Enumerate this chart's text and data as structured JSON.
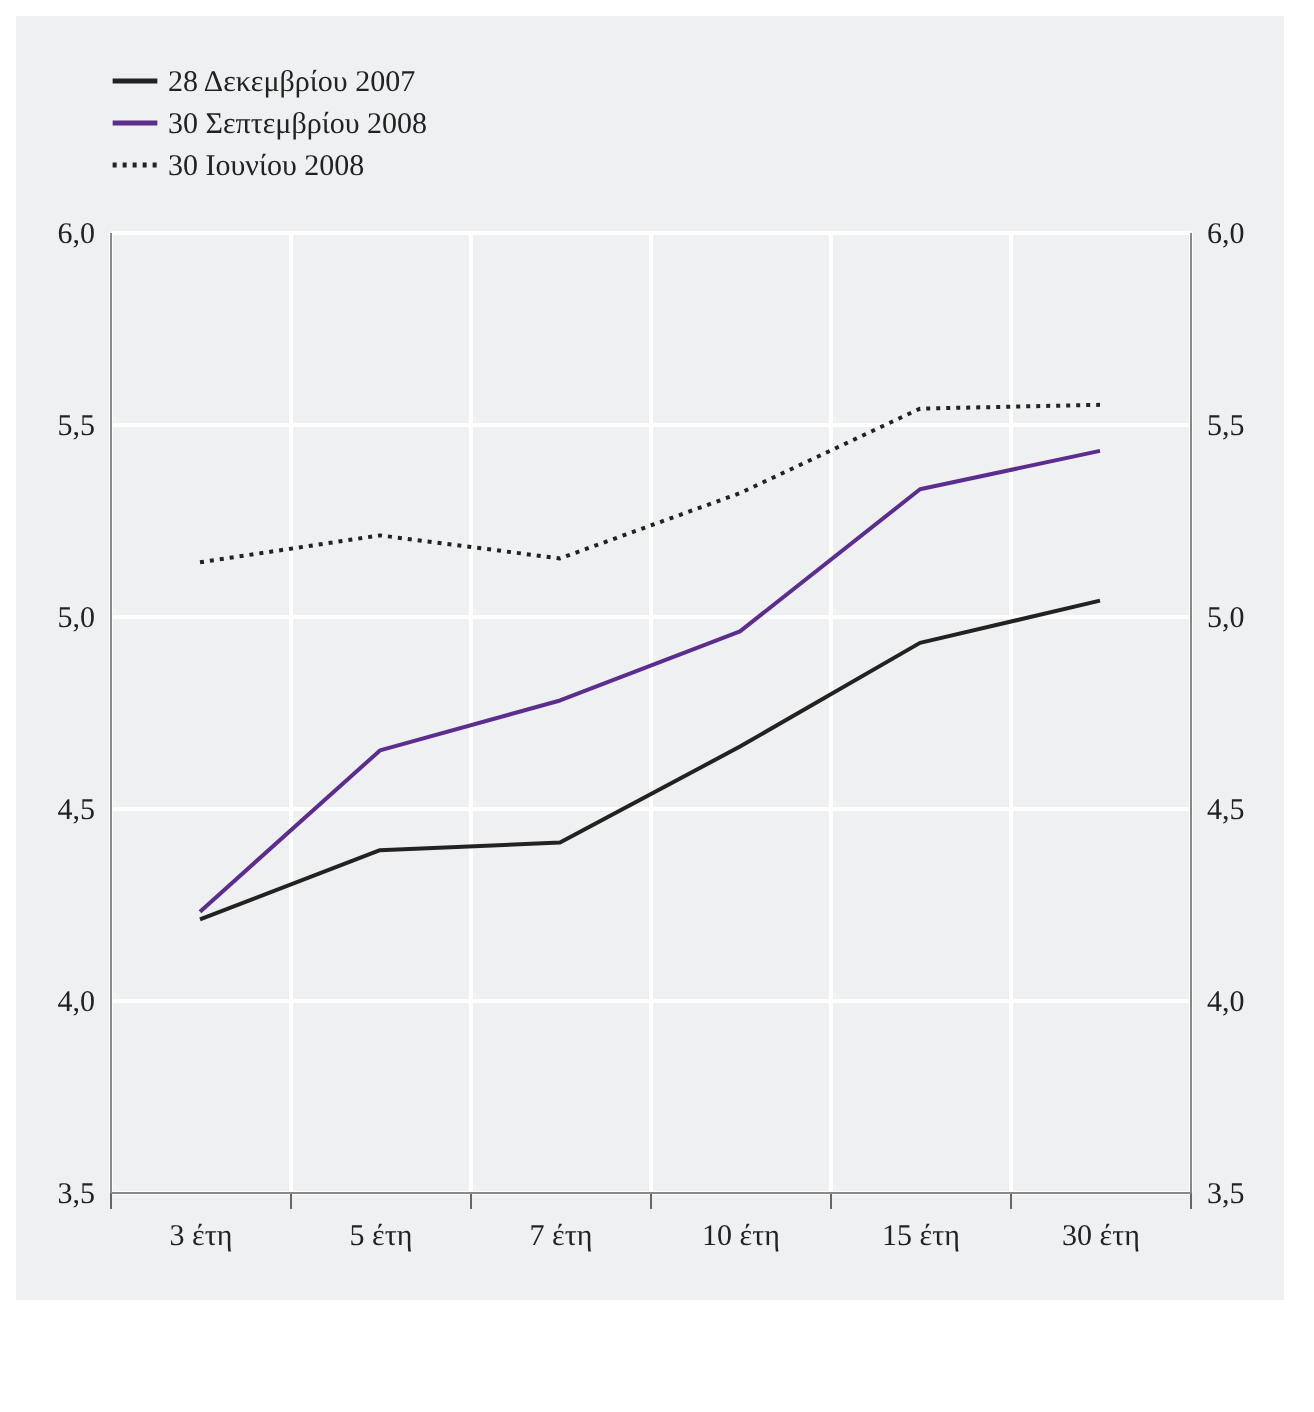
{
  "chart_data": {
    "type": "line",
    "categories": [
      "3 έτη",
      "5 έτη",
      "7 έτη",
      "10 έτη",
      "15 έτη",
      "30 έτη"
    ],
    "series": [
      {
        "name": "28 Δεκεμβρίου 2007",
        "color": "#222222",
        "line_style": "solid",
        "values": [
          4.21,
          4.39,
          4.41,
          4.66,
          4.93,
          5.04
        ]
      },
      {
        "name": "30 Σεπτεμβρίου 2008",
        "color": "#5b2d8e",
        "line_style": "solid",
        "values": [
          4.23,
          4.65,
          4.78,
          4.96,
          5.33,
          5.43
        ]
      },
      {
        "name": "30 Ιουνίου 2008",
        "color": "#222222",
        "line_style": "dotted",
        "values": [
          5.14,
          5.21,
          5.15,
          5.32,
          5.54,
          5.55
        ]
      }
    ],
    "ylim": [
      3.5,
      6.0
    ],
    "yticks": [
      {
        "value": 3.5,
        "label": "3,5"
      },
      {
        "value": 4.0,
        "label": "4,0"
      },
      {
        "value": 4.5,
        "label": "4,5"
      },
      {
        "value": 5.0,
        "label": "5,0"
      },
      {
        "value": 5.5,
        "label": "5,5"
      },
      {
        "value": 6.0,
        "label": "6,0"
      }
    ],
    "y2lim": [
      3.5,
      6.0
    ],
    "y2ticks": [
      {
        "value": 3.5,
        "label": "3,5"
      },
      {
        "value": 4.0,
        "label": "4,0"
      },
      {
        "value": 4.5,
        "label": "4,5"
      },
      {
        "value": 5.0,
        "label": "5,0"
      },
      {
        "value": 5.5,
        "label": "5,5"
      },
      {
        "value": 6.0,
        "label": "6,0"
      }
    ],
    "grid": true,
    "legend": "top left",
    "marker": "none"
  }
}
